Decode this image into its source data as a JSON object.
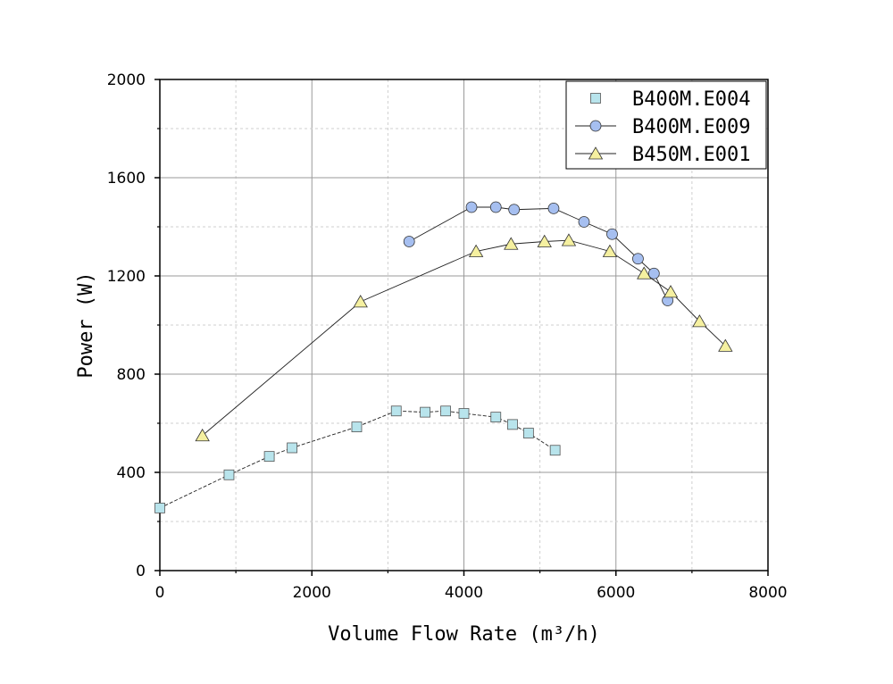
{
  "chart_data": {
    "type": "line",
    "title": "",
    "xlabel": "Volume Flow Rate (m³/h)",
    "ylabel": "Power (W)",
    "xlim": [
      0,
      8000
    ],
    "ylim": [
      0,
      2000
    ],
    "x_ticks": [
      0,
      2000,
      4000,
      6000,
      8000
    ],
    "y_ticks": [
      0,
      400,
      800,
      1200,
      1600,
      2000
    ],
    "grid": true,
    "legend_position": "top-right",
    "series": [
      {
        "name": "B400M.E004",
        "marker": "square",
        "color": "#b8e4ec",
        "line": "dashed",
        "x": [
          0,
          910,
          1440,
          1740,
          2590,
          3110,
          3490,
          3760,
          4000,
          4420,
          4640,
          4850,
          5200
        ],
        "y": [
          255,
          390,
          465,
          500,
          585,
          650,
          645,
          650,
          640,
          625,
          595,
          560,
          490
        ]
      },
      {
        "name": "B400M.E009",
        "marker": "circle",
        "color": "#a6bff0",
        "line": "solid",
        "x": [
          3280,
          4100,
          4420,
          4660,
          5180,
          5580,
          5950,
          6290,
          6500,
          6680
        ],
        "y": [
          1340,
          1480,
          1480,
          1470,
          1475,
          1420,
          1370,
          1270,
          1210,
          1100
        ]
      },
      {
        "name": "B450M.E001",
        "marker": "triangle",
        "color": "#f5f0a0",
        "line": "solid",
        "x": [
          560,
          2640,
          4160,
          4620,
          5060,
          5380,
          5920,
          6370,
          6720,
          7100,
          7440
        ],
        "y": [
          550,
          1095,
          1300,
          1330,
          1340,
          1345,
          1300,
          1210,
          1135,
          1015,
          915
        ]
      }
    ]
  }
}
